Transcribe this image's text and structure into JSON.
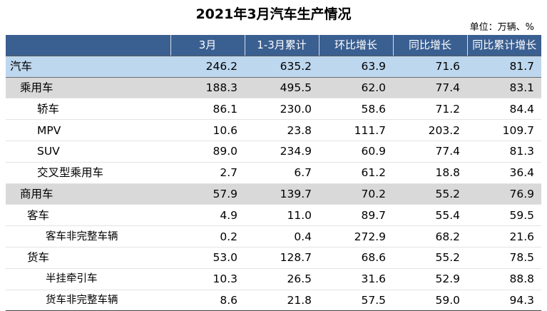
{
  "title": "2021年3月汽车生产情况",
  "unit_note": "单位：万辆、%",
  "columns": [
    "",
    "3月",
    "1-3月累计",
    "环比增长",
    "同比增长",
    "同比累计增长"
  ],
  "rows": [
    {
      "name": "汽车",
      "level": 0,
      "values": [
        "246.2",
        "635.2",
        "63.9",
        "71.6",
        "81.7"
      ]
    },
    {
      "name": "乘用车",
      "level": 1,
      "values": [
        "188.3",
        "495.5",
        "62.0",
        "77.4",
        "83.1"
      ]
    },
    {
      "name": "轿车",
      "level": 2,
      "values": [
        "86.1",
        "230.0",
        "58.6",
        "71.2",
        "84.4"
      ]
    },
    {
      "name": "MPV",
      "level": 2,
      "values": [
        "10.6",
        "23.8",
        "111.7",
        "203.2",
        "109.7"
      ]
    },
    {
      "name": "SUV",
      "level": 2,
      "values": [
        "89.0",
        "234.9",
        "60.9",
        "77.4",
        "81.3"
      ]
    },
    {
      "name": "交叉型乘用车",
      "level": 2,
      "values": [
        "2.7",
        "6.7",
        "61.2",
        "18.8",
        "36.4"
      ]
    },
    {
      "name": "商用车",
      "level": 1,
      "values": [
        "57.9",
        "139.7",
        "70.2",
        "55.2",
        "76.9"
      ]
    },
    {
      "name": "客车",
      "level": "2b",
      "values": [
        "4.9",
        "11.0",
        "89.7",
        "55.4",
        "59.5"
      ]
    },
    {
      "name": "客车非完整车辆",
      "level": 3,
      "values": [
        "0.2",
        "0.4",
        "272.9",
        "68.2",
        "21.6"
      ]
    },
    {
      "name": "货车",
      "level": "2b",
      "values": [
        "53.0",
        "128.7",
        "68.6",
        "55.2",
        "78.5"
      ]
    },
    {
      "name": "半挂牵引车",
      "level": 3,
      "values": [
        "10.3",
        "26.5",
        "31.6",
        "52.9",
        "88.8"
      ]
    },
    {
      "name": "货车非完整车辆",
      "level": 3,
      "values": [
        "8.6",
        "21.8",
        "57.5",
        "59.0",
        "94.3"
      ]
    }
  ]
}
